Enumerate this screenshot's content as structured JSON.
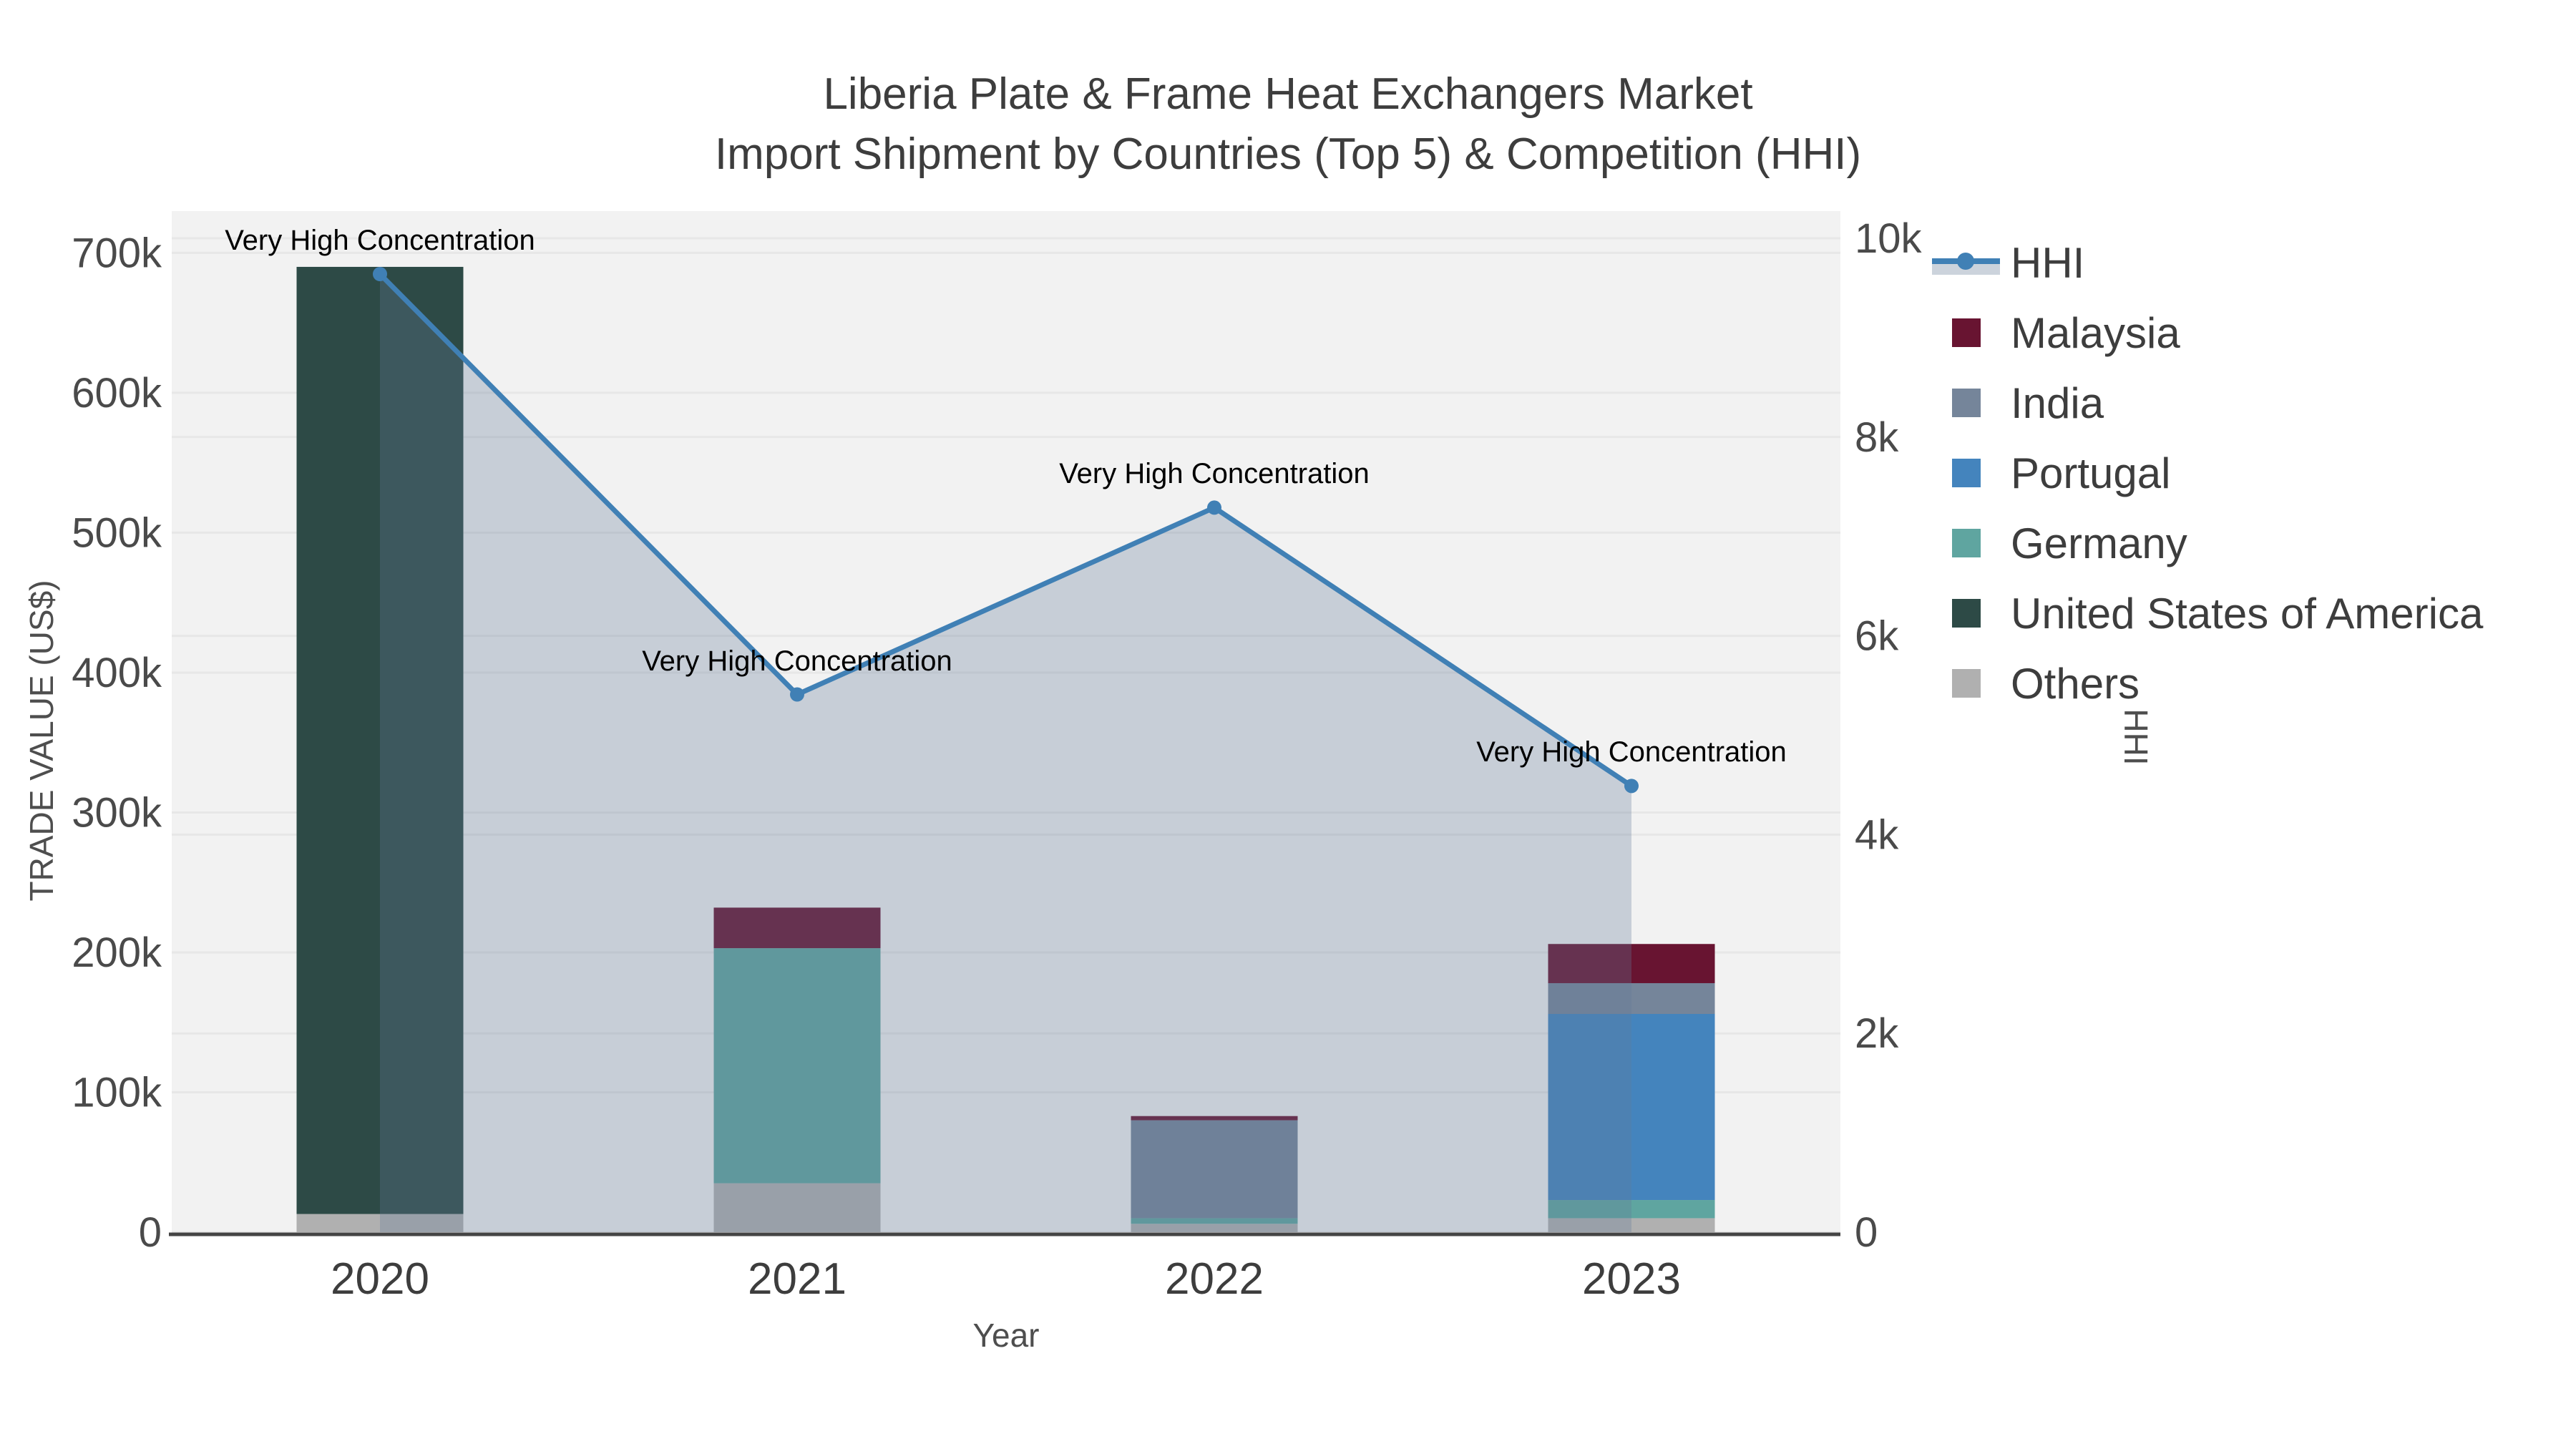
{
  "title": {
    "line1": "Liberia Plate & Frame Heat Exchangers Market",
    "line2": "Import Shipment by Countries (Top 5) & Competition (HHI)"
  },
  "legend": {
    "items": [
      {
        "label": "HHI",
        "type": "line",
        "color": "#4080b5",
        "band_color": "#ccd3dc"
      },
      {
        "label": "Malaysia",
        "type": "swatch",
        "color": "#681431"
      },
      {
        "label": "India",
        "type": "swatch",
        "color": "#75859a"
      },
      {
        "label": "Portugal",
        "type": "swatch",
        "color": "#4484bd"
      },
      {
        "label": "Germany",
        "type": "swatch",
        "color": "#5fa5a0"
      },
      {
        "label": "United States of America",
        "type": "swatch",
        "color": "#2d4a46"
      },
      {
        "label": "Others",
        "type": "swatch",
        "color": "#b0b0b0"
      }
    ]
  },
  "chart_data": {
    "type": "bar",
    "subtype": "stacked-bars-with-line",
    "title": "Liberia Plate & Frame Heat Exchangers Market",
    "subtitle": "Import Shipment by Countries (Top 5) & Competition (HHI)",
    "categories": [
      "2020",
      "2021",
      "2022",
      "2023"
    ],
    "stack_order": [
      "Others",
      "United States of America",
      "Germany",
      "Portugal",
      "India",
      "Malaysia"
    ],
    "series": [
      {
        "name": "Malaysia",
        "color": "#681431",
        "values": [
          0,
          29000,
          3000,
          28000
        ]
      },
      {
        "name": "India",
        "color": "#75859a",
        "values": [
          0,
          0,
          70000,
          22000
        ]
      },
      {
        "name": "Portugal",
        "color": "#4484bd",
        "values": [
          0,
          0,
          0,
          133000
        ]
      },
      {
        "name": "Germany",
        "color": "#5fa5a0",
        "values": [
          0,
          168000,
          4000,
          13000
        ]
      },
      {
        "name": "United States of America",
        "color": "#2d4a46",
        "values": [
          677000,
          0,
          0,
          0
        ]
      },
      {
        "name": "Others",
        "color": "#b0b0b0",
        "values": [
          13000,
          35000,
          6000,
          10000
        ]
      }
    ],
    "bar_totals": [
      690000,
      232000,
      83000,
      206000
    ],
    "line_series": {
      "name": "HHI",
      "color": "#4080b5",
      "area_fill_color": "rgba(100,123,153,0.30)",
      "values": [
        9640,
        5410,
        7290,
        4490
      ]
    },
    "annotations": [
      {
        "text": "Very High Concentration",
        "year_index": 0
      },
      {
        "text": "Very High Concentration",
        "year_index": 1
      },
      {
        "text": "Very High Concentration",
        "year_index": 2
      },
      {
        "text": "Very High Concentration",
        "year_index": 3
      }
    ],
    "left_axis": {
      "title": "TRADE VALUE (US$)",
      "ticks": [
        0,
        100000,
        200000,
        300000,
        400000,
        500000,
        600000,
        700000
      ],
      "tick_labels": [
        "0",
        "100k",
        "200k",
        "300k",
        "400k",
        "500k",
        "600k",
        "700k"
      ],
      "range": [
        0,
        730000
      ]
    },
    "right_axis": {
      "title": "HHI",
      "ticks": [
        0,
        2000,
        4000,
        6000,
        8000,
        10000
      ],
      "tick_labels": [
        "0",
        "2k",
        "4k",
        "6k",
        "8k",
        "10k"
      ],
      "range": [
        0,
        10300
      ]
    },
    "x_axis": {
      "title": "Year"
    },
    "grid": true,
    "legend_position": "right",
    "panel_color": "#f2f2f2",
    "gridline_color": "#e7e7e7",
    "axisline_color": "#444444"
  }
}
